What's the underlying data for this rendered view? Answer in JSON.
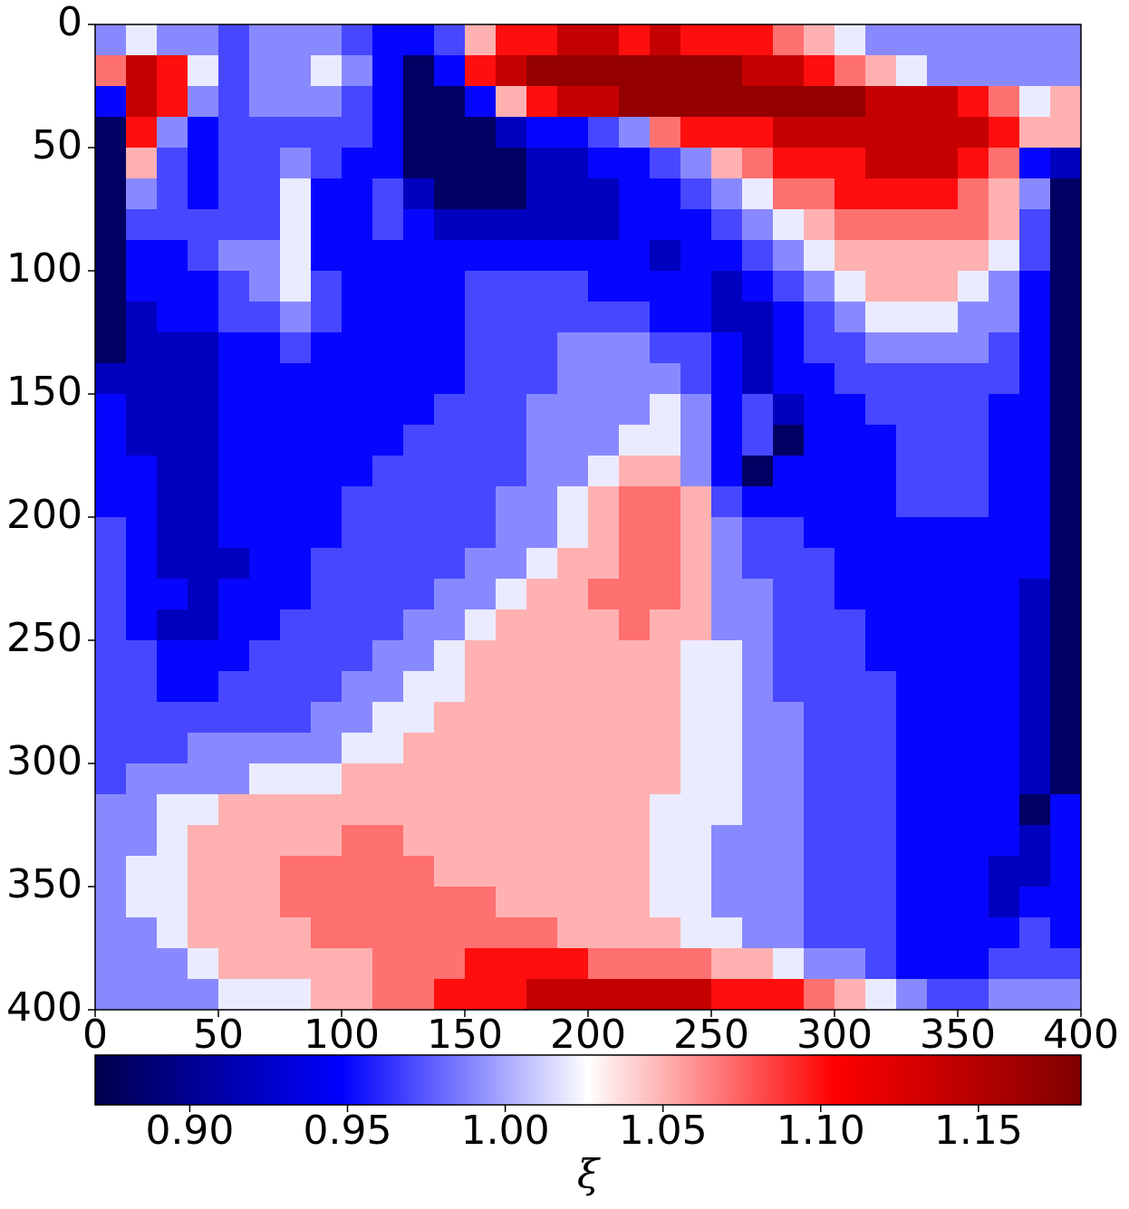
{
  "chart_data": {
    "type": "heatmap",
    "xlim": [
      0,
      400
    ],
    "ylim": [
      400,
      0
    ],
    "xticks": [
      0,
      50,
      100,
      150,
      200,
      250,
      300,
      350,
      400
    ],
    "yticks": [
      0,
      50,
      100,
      150,
      200,
      250,
      300,
      350,
      400
    ],
    "colormap": "seismic",
    "clim": [
      0.87,
      1.1825
    ],
    "colorbar_ticks": [
      {
        "value": 0.9,
        "label": "0.90"
      },
      0.95,
      {
        "value": 1.0,
        "label": "1.00"
      },
      1.05,
      {
        "value": 1.1,
        "label": "1.10"
      },
      1.15
    ],
    "colorbar_label": "ξ",
    "z": [
      [
        0.99,
        1.02,
        0.99,
        0.99,
        0.97,
        0.99,
        0.99,
        0.99,
        0.97,
        0.95,
        0.95,
        0.97,
        1.05,
        1.1,
        1.1,
        1.14,
        1.14,
        1.1,
        1.14,
        1.1,
        1.1,
        1.1,
        1.07,
        1.05,
        1.02,
        0.99,
        0.99,
        0.99,
        0.99,
        0.99,
        0.99,
        0.99
      ],
      [
        1.07,
        1.14,
        1.1,
        1.02,
        0.97,
        0.99,
        0.99,
        1.02,
        0.99,
        0.95,
        0.88,
        0.95,
        1.1,
        1.14,
        1.17,
        1.17,
        1.17,
        1.17,
        1.17,
        1.17,
        1.17,
        1.14,
        1.14,
        1.1,
        1.07,
        1.05,
        1.02,
        0.99,
        0.99,
        0.99,
        0.99,
        0.99
      ],
      [
        0.95,
        1.14,
        1.1,
        0.99,
        0.97,
        0.99,
        0.99,
        0.99,
        0.97,
        0.95,
        0.88,
        0.88,
        0.95,
        1.05,
        1.1,
        1.14,
        1.14,
        1.17,
        1.17,
        1.17,
        1.17,
        1.17,
        1.17,
        1.17,
        1.17,
        1.14,
        1.14,
        1.14,
        1.1,
        1.07,
        1.02,
        1.05
      ],
      [
        0.88,
        1.1,
        0.99,
        0.95,
        0.97,
        0.97,
        0.97,
        0.97,
        0.97,
        0.95,
        0.88,
        0.88,
        0.88,
        0.92,
        0.95,
        0.95,
        0.97,
        0.99,
        1.07,
        1.1,
        1.1,
        1.1,
        1.14,
        1.14,
        1.14,
        1.14,
        1.14,
        1.14,
        1.14,
        1.1,
        1.05,
        1.05
      ],
      [
        0.88,
        1.05,
        0.97,
        0.95,
        0.97,
        0.97,
        0.99,
        0.97,
        0.95,
        0.95,
        0.88,
        0.88,
        0.88,
        0.88,
        0.92,
        0.92,
        0.95,
        0.95,
        0.97,
        0.99,
        1.05,
        1.07,
        1.1,
        1.1,
        1.1,
        1.14,
        1.14,
        1.14,
        1.1,
        1.07,
        0.95,
        0.92
      ],
      [
        0.88,
        0.99,
        0.97,
        0.95,
        0.97,
        0.97,
        1.02,
        0.95,
        0.95,
        0.97,
        0.92,
        0.88,
        0.88,
        0.88,
        0.92,
        0.92,
        0.92,
        0.95,
        0.95,
        0.97,
        0.99,
        1.02,
        1.07,
        1.07,
        1.1,
        1.1,
        1.1,
        1.1,
        1.07,
        1.05,
        0.99,
        0.88
      ],
      [
        0.88,
        0.97,
        0.97,
        0.97,
        0.97,
        0.97,
        1.02,
        0.95,
        0.95,
        0.97,
        0.95,
        0.92,
        0.92,
        0.92,
        0.92,
        0.92,
        0.92,
        0.95,
        0.95,
        0.95,
        0.97,
        0.99,
        1.02,
        1.05,
        1.07,
        1.07,
        1.07,
        1.07,
        1.07,
        1.05,
        0.97,
        0.88
      ],
      [
        0.88,
        0.95,
        0.95,
        0.97,
        0.99,
        0.99,
        1.02,
        0.95,
        0.95,
        0.95,
        0.95,
        0.95,
        0.95,
        0.95,
        0.95,
        0.95,
        0.95,
        0.95,
        0.92,
        0.95,
        0.95,
        0.97,
        0.99,
        1.02,
        1.05,
        1.05,
        1.05,
        1.05,
        1.05,
        1.02,
        0.97,
        0.88
      ],
      [
        0.88,
        0.95,
        0.95,
        0.95,
        0.97,
        0.99,
        1.02,
        0.97,
        0.95,
        0.95,
        0.95,
        0.95,
        0.97,
        0.97,
        0.97,
        0.97,
        0.95,
        0.95,
        0.95,
        0.95,
        0.92,
        0.95,
        0.97,
        0.99,
        1.02,
        1.05,
        1.05,
        1.05,
        1.02,
        0.99,
        0.95,
        0.88
      ],
      [
        0.88,
        0.92,
        0.95,
        0.95,
        0.97,
        0.97,
        0.99,
        0.97,
        0.95,
        0.95,
        0.95,
        0.95,
        0.97,
        0.97,
        0.97,
        0.97,
        0.97,
        0.97,
        0.95,
        0.95,
        0.92,
        0.92,
        0.95,
        0.97,
        0.99,
        1.02,
        1.02,
        1.02,
        0.99,
        0.99,
        0.95,
        0.88
      ],
      [
        0.88,
        0.92,
        0.92,
        0.92,
        0.95,
        0.95,
        0.97,
        0.95,
        0.95,
        0.95,
        0.95,
        0.95,
        0.97,
        0.97,
        0.97,
        0.99,
        0.99,
        0.99,
        0.97,
        0.97,
        0.95,
        0.92,
        0.95,
        0.97,
        0.97,
        0.99,
        0.99,
        0.99,
        0.99,
        0.97,
        0.95,
        0.88
      ],
      [
        0.92,
        0.92,
        0.92,
        0.92,
        0.95,
        0.95,
        0.95,
        0.95,
        0.95,
        0.95,
        0.95,
        0.95,
        0.97,
        0.97,
        0.97,
        0.99,
        0.99,
        0.99,
        0.99,
        0.97,
        0.95,
        0.92,
        0.95,
        0.95,
        0.97,
        0.97,
        0.97,
        0.97,
        0.97,
        0.97,
        0.95,
        0.88
      ],
      [
        0.95,
        0.92,
        0.92,
        0.92,
        0.95,
        0.95,
        0.95,
        0.95,
        0.95,
        0.95,
        0.95,
        0.97,
        0.97,
        0.97,
        0.99,
        0.99,
        0.99,
        0.99,
        1.02,
        0.99,
        0.95,
        0.97,
        0.92,
        0.95,
        0.95,
        0.97,
        0.97,
        0.97,
        0.97,
        0.95,
        0.95,
        0.88
      ],
      [
        0.95,
        0.92,
        0.92,
        0.92,
        0.95,
        0.95,
        0.95,
        0.95,
        0.95,
        0.95,
        0.97,
        0.97,
        0.97,
        0.97,
        0.99,
        0.99,
        0.99,
        1.02,
        1.02,
        0.99,
        0.95,
        0.97,
        0.88,
        0.95,
        0.95,
        0.95,
        0.97,
        0.97,
        0.97,
        0.95,
        0.95,
        0.88
      ],
      [
        0.95,
        0.95,
        0.92,
        0.92,
        0.95,
        0.95,
        0.95,
        0.95,
        0.95,
        0.97,
        0.97,
        0.97,
        0.97,
        0.97,
        0.99,
        0.99,
        1.02,
        1.05,
        1.05,
        0.99,
        0.95,
        0.88,
        0.95,
        0.95,
        0.95,
        0.95,
        0.97,
        0.97,
        0.97,
        0.95,
        0.95,
        0.88
      ],
      [
        0.95,
        0.95,
        0.92,
        0.92,
        0.95,
        0.95,
        0.95,
        0.95,
        0.97,
        0.97,
        0.97,
        0.97,
        0.97,
        0.99,
        0.99,
        1.02,
        1.05,
        1.07,
        1.07,
        1.05,
        0.97,
        0.95,
        0.95,
        0.95,
        0.95,
        0.95,
        0.97,
        0.97,
        0.97,
        0.95,
        0.95,
        0.88
      ],
      [
        0.97,
        0.95,
        0.92,
        0.92,
        0.95,
        0.95,
        0.95,
        0.95,
        0.97,
        0.97,
        0.97,
        0.97,
        0.97,
        0.99,
        0.99,
        1.02,
        1.05,
        1.07,
        1.07,
        1.05,
        0.99,
        0.97,
        0.97,
        0.95,
        0.95,
        0.95,
        0.95,
        0.95,
        0.95,
        0.95,
        0.95,
        0.88
      ],
      [
        0.97,
        0.95,
        0.92,
        0.92,
        0.92,
        0.95,
        0.95,
        0.97,
        0.97,
        0.97,
        0.97,
        0.97,
        0.99,
        0.99,
        1.02,
        1.05,
        1.05,
        1.07,
        1.07,
        1.05,
        0.99,
        0.97,
        0.97,
        0.97,
        0.95,
        0.95,
        0.95,
        0.95,
        0.95,
        0.95,
        0.95,
        0.88
      ],
      [
        0.97,
        0.95,
        0.95,
        0.92,
        0.95,
        0.95,
        0.95,
        0.97,
        0.97,
        0.97,
        0.97,
        0.99,
        0.99,
        1.02,
        1.05,
        1.05,
        1.07,
        1.07,
        1.07,
        1.05,
        0.99,
        0.99,
        0.97,
        0.97,
        0.95,
        0.95,
        0.95,
        0.95,
        0.95,
        0.95,
        0.92,
        0.88
      ],
      [
        0.97,
        0.95,
        0.92,
        0.92,
        0.95,
        0.95,
        0.97,
        0.97,
        0.97,
        0.97,
        0.99,
        0.99,
        1.02,
        1.05,
        1.05,
        1.05,
        1.05,
        1.07,
        1.05,
        1.05,
        0.99,
        0.99,
        0.97,
        0.97,
        0.97,
        0.95,
        0.95,
        0.95,
        0.95,
        0.95,
        0.92,
        0.88
      ],
      [
        0.97,
        0.97,
        0.95,
        0.95,
        0.95,
        0.97,
        0.97,
        0.97,
        0.97,
        0.99,
        0.99,
        1.02,
        1.05,
        1.05,
        1.05,
        1.05,
        1.05,
        1.05,
        1.05,
        1.02,
        1.02,
        0.99,
        0.97,
        0.97,
        0.97,
        0.95,
        0.95,
        0.95,
        0.95,
        0.95,
        0.92,
        0.88
      ],
      [
        0.97,
        0.97,
        0.95,
        0.95,
        0.97,
        0.97,
        0.97,
        0.97,
        0.99,
        0.99,
        1.02,
        1.02,
        1.05,
        1.05,
        1.05,
        1.05,
        1.05,
        1.05,
        1.05,
        1.02,
        1.02,
        0.99,
        0.97,
        0.97,
        0.97,
        0.97,
        0.95,
        0.95,
        0.95,
        0.95,
        0.92,
        0.88
      ],
      [
        0.97,
        0.97,
        0.97,
        0.97,
        0.97,
        0.97,
        0.97,
        0.99,
        0.99,
        1.02,
        1.02,
        1.05,
        1.05,
        1.05,
        1.05,
        1.05,
        1.05,
        1.05,
        1.05,
        1.02,
        1.02,
        0.99,
        0.99,
        0.97,
        0.97,
        0.97,
        0.95,
        0.95,
        0.95,
        0.95,
        0.92,
        0.88
      ],
      [
        0.97,
        0.97,
        0.97,
        0.99,
        0.99,
        0.99,
        0.99,
        0.99,
        1.02,
        1.02,
        1.05,
        1.05,
        1.05,
        1.05,
        1.05,
        1.05,
        1.05,
        1.05,
        1.05,
        1.02,
        1.02,
        0.99,
        0.99,
        0.97,
        0.97,
        0.97,
        0.95,
        0.95,
        0.95,
        0.95,
        0.92,
        0.88
      ],
      [
        0.97,
        0.99,
        0.99,
        0.99,
        0.99,
        1.02,
        1.02,
        1.02,
        1.05,
        1.05,
        1.05,
        1.05,
        1.05,
        1.05,
        1.05,
        1.05,
        1.05,
        1.05,
        1.05,
        1.02,
        1.02,
        0.99,
        0.99,
        0.97,
        0.97,
        0.97,
        0.95,
        0.95,
        0.95,
        0.95,
        0.92,
        0.88
      ],
      [
        0.99,
        0.99,
        1.02,
        1.02,
        1.05,
        1.05,
        1.05,
        1.05,
        1.05,
        1.05,
        1.05,
        1.05,
        1.05,
        1.05,
        1.05,
        1.05,
        1.05,
        1.05,
        1.02,
        1.02,
        1.02,
        0.99,
        0.99,
        0.97,
        0.97,
        0.97,
        0.95,
        0.95,
        0.95,
        0.95,
        0.88,
        0.95
      ],
      [
        0.99,
        0.99,
        1.02,
        1.05,
        1.05,
        1.05,
        1.05,
        1.05,
        1.07,
        1.07,
        1.05,
        1.05,
        1.05,
        1.05,
        1.05,
        1.05,
        1.05,
        1.05,
        1.02,
        1.02,
        0.99,
        0.99,
        0.99,
        0.97,
        0.97,
        0.97,
        0.95,
        0.95,
        0.95,
        0.95,
        0.92,
        0.95
      ],
      [
        0.99,
        1.02,
        1.02,
        1.05,
        1.05,
        1.05,
        1.07,
        1.07,
        1.07,
        1.07,
        1.07,
        1.05,
        1.05,
        1.05,
        1.05,
        1.05,
        1.05,
        1.05,
        1.02,
        1.02,
        0.99,
        0.99,
        0.99,
        0.97,
        0.97,
        0.97,
        0.95,
        0.95,
        0.95,
        0.92,
        0.92,
        0.95
      ],
      [
        0.99,
        1.02,
        1.02,
        1.05,
        1.05,
        1.05,
        1.07,
        1.07,
        1.07,
        1.07,
        1.07,
        1.07,
        1.07,
        1.05,
        1.05,
        1.05,
        1.05,
        1.05,
        1.02,
        1.02,
        0.99,
        0.99,
        0.99,
        0.97,
        0.97,
        0.97,
        0.95,
        0.95,
        0.95,
        0.92,
        0.95,
        0.95
      ],
      [
        0.99,
        0.99,
        1.02,
        1.05,
        1.05,
        1.05,
        1.05,
        1.07,
        1.07,
        1.07,
        1.07,
        1.07,
        1.07,
        1.07,
        1.07,
        1.05,
        1.05,
        1.05,
        1.05,
        1.02,
        1.02,
        0.99,
        0.99,
        0.97,
        0.97,
        0.97,
        0.95,
        0.95,
        0.95,
        0.95,
        0.97,
        0.95
      ],
      [
        0.99,
        0.99,
        0.99,
        1.02,
        1.05,
        1.05,
        1.05,
        1.05,
        1.05,
        1.07,
        1.07,
        1.07,
        1.1,
        1.1,
        1.1,
        1.1,
        1.07,
        1.07,
        1.07,
        1.07,
        1.05,
        1.05,
        1.02,
        0.99,
        0.99,
        0.97,
        0.95,
        0.95,
        0.95,
        0.97,
        0.97,
        0.97
      ],
      [
        0.99,
        0.99,
        0.99,
        0.99,
        1.02,
        1.02,
        1.02,
        1.05,
        1.05,
        1.07,
        1.07,
        1.1,
        1.1,
        1.1,
        1.14,
        1.14,
        1.14,
        1.14,
        1.14,
        1.14,
        1.1,
        1.1,
        1.1,
        1.07,
        1.05,
        1.02,
        0.99,
        0.97,
        0.97,
        0.99,
        0.99,
        0.99
      ]
    ]
  }
}
